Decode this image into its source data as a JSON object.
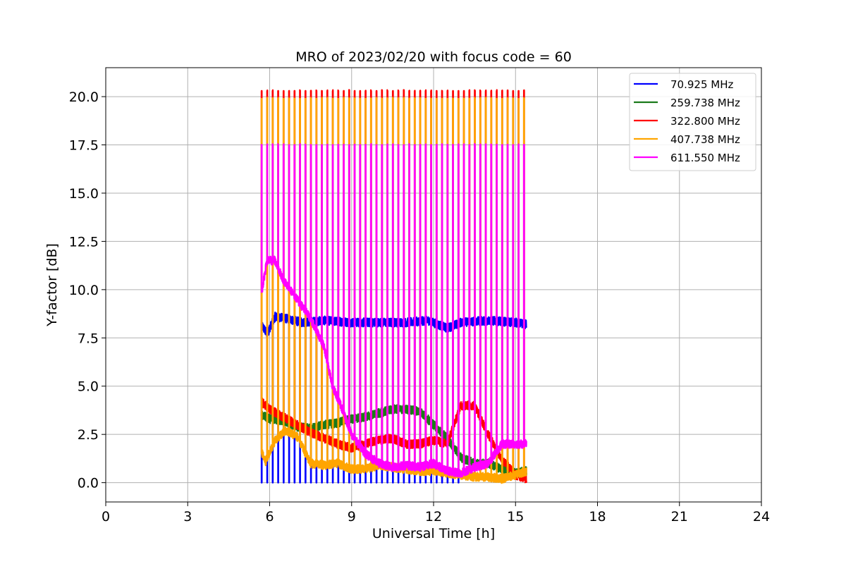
{
  "chart_data": {
    "type": "line",
    "title": "MRO of 2023/02/20 with focus code = 60",
    "xlabel": "Universal Time [h]",
    "ylabel": "Y-factor [dB]",
    "xlim": [
      0,
      24
    ],
    "ylim": [
      -1.0,
      21.5
    ],
    "xticks": [
      0,
      3,
      6,
      9,
      12,
      15,
      18,
      21,
      24
    ],
    "xtick_labels": [
      "0",
      "3",
      "6",
      "9",
      "12",
      "15",
      "18",
      "21",
      "24"
    ],
    "yticks": [
      0.0,
      2.5,
      5.0,
      7.5,
      10.0,
      12.5,
      15.0,
      17.5,
      20.0
    ],
    "ytick_labels": [
      "0.0",
      "2.5",
      "5.0",
      "7.5",
      "10.0",
      "12.5",
      "15.0",
      "17.5",
      "20.0"
    ],
    "grid": true,
    "legend_position": "top-right",
    "time_start": 5.7,
    "time_end": 15.4,
    "spike_period_h": 0.2,
    "series": [
      {
        "name": "70.925 MHz",
        "legend_label": " 70.925 MHz",
        "color": "#0000ff",
        "spike_high": 2.3,
        "spike_low": 0.0,
        "spike_until": 13.0,
        "baseline": [
          [
            5.7,
            8.2
          ],
          [
            5.9,
            7.7
          ],
          [
            6.2,
            8.6
          ],
          [
            6.6,
            8.5
          ],
          [
            7.2,
            8.3
          ],
          [
            8.0,
            8.4
          ],
          [
            9.0,
            8.3
          ],
          [
            10.0,
            8.3
          ],
          [
            11.0,
            8.3
          ],
          [
            11.8,
            8.4
          ],
          [
            12.5,
            8.0
          ],
          [
            13.0,
            8.3
          ],
          [
            14.0,
            8.4
          ],
          [
            15.0,
            8.3
          ],
          [
            15.4,
            8.2
          ]
        ]
      },
      {
        "name": "259.738 MHz",
        "legend_label": "259.738 MHz",
        "color": "#1a7a1a",
        "spike_high": null,
        "baseline": [
          [
            5.7,
            3.5
          ],
          [
            6.0,
            3.3
          ],
          [
            6.5,
            3.2
          ],
          [
            7.0,
            2.9
          ],
          [
            7.5,
            2.8
          ],
          [
            8.0,
            3.0
          ],
          [
            8.5,
            3.1
          ],
          [
            9.0,
            3.3
          ],
          [
            9.5,
            3.4
          ],
          [
            10.0,
            3.6
          ],
          [
            10.5,
            3.8
          ],
          [
            11.0,
            3.8
          ],
          [
            11.5,
            3.7
          ],
          [
            12.0,
            3.0
          ],
          [
            12.5,
            2.3
          ],
          [
            13.0,
            1.3
          ],
          [
            13.5,
            1.0
          ],
          [
            14.0,
            1.0
          ],
          [
            14.5,
            0.7
          ],
          [
            15.0,
            0.5
          ],
          [
            15.4,
            0.6
          ]
        ]
      },
      {
        "name": "322.800 MHz",
        "legend_label": "322.800 MHz",
        "color": "#ff0000",
        "spike_high": 20.3,
        "baseline": [
          [
            5.7,
            4.2
          ],
          [
            6.0,
            3.8
          ],
          [
            6.5,
            3.4
          ],
          [
            7.0,
            3.0
          ],
          [
            7.5,
            2.6
          ],
          [
            8.0,
            2.3
          ],
          [
            8.5,
            2.0
          ],
          [
            9.0,
            1.8
          ],
          [
            9.5,
            2.0
          ],
          [
            10.0,
            2.2
          ],
          [
            10.5,
            2.3
          ],
          [
            11.0,
            2.0
          ],
          [
            11.5,
            2.0
          ],
          [
            12.0,
            2.2
          ],
          [
            12.5,
            2.0
          ],
          [
            13.0,
            4.0
          ],
          [
            13.5,
            4.0
          ],
          [
            14.0,
            2.5
          ],
          [
            14.5,
            1.2
          ],
          [
            15.0,
            0.4
          ],
          [
            15.4,
            0.2
          ]
        ]
      },
      {
        "name": "407.738 MHz",
        "legend_label": "407.738 MHz",
        "color": "#ffa500",
        "spike_high": 19.9,
        "baseline": [
          [
            5.7,
            1.6
          ],
          [
            5.85,
            1.1
          ],
          [
            6.2,
            2.2
          ],
          [
            6.6,
            2.7
          ],
          [
            7.0,
            2.4
          ],
          [
            7.5,
            1.0
          ],
          [
            8.0,
            0.9
          ],
          [
            8.5,
            1.0
          ],
          [
            9.0,
            0.7
          ],
          [
            9.5,
            0.7
          ],
          [
            10.0,
            0.9
          ],
          [
            10.5,
            0.8
          ],
          [
            11.0,
            0.7
          ],
          [
            11.5,
            0.6
          ],
          [
            12.0,
            0.6
          ],
          [
            12.5,
            0.5
          ],
          [
            13.0,
            0.4
          ],
          [
            13.5,
            0.3
          ],
          [
            14.0,
            0.3
          ],
          [
            14.5,
            0.2
          ],
          [
            15.0,
            0.4
          ],
          [
            15.4,
            0.6
          ]
        ]
      },
      {
        "name": "611.550 MHz",
        "legend_label": "611.550 MHz",
        "color": "#ff00ff",
        "spike_high": 17.5,
        "baseline": [
          [
            5.7,
            9.8
          ],
          [
            5.9,
            11.5
          ],
          [
            6.2,
            11.5
          ],
          [
            6.5,
            10.5
          ],
          [
            7.0,
            9.5
          ],
          [
            7.5,
            8.5
          ],
          [
            8.0,
            7.0
          ],
          [
            8.3,
            5.0
          ],
          [
            8.6,
            4.0
          ],
          [
            9.0,
            2.5
          ],
          [
            9.5,
            1.5
          ],
          [
            10.0,
            1.0
          ],
          [
            10.5,
            0.8
          ],
          [
            11.0,
            0.9
          ],
          [
            11.5,
            0.8
          ],
          [
            12.0,
            1.0
          ],
          [
            12.5,
            0.6
          ],
          [
            13.0,
            0.5
          ],
          [
            13.5,
            0.8
          ],
          [
            14.0,
            1.0
          ],
          [
            14.5,
            2.0
          ],
          [
            15.0,
            2.0
          ],
          [
            15.4,
            2.0
          ]
        ]
      }
    ]
  }
}
